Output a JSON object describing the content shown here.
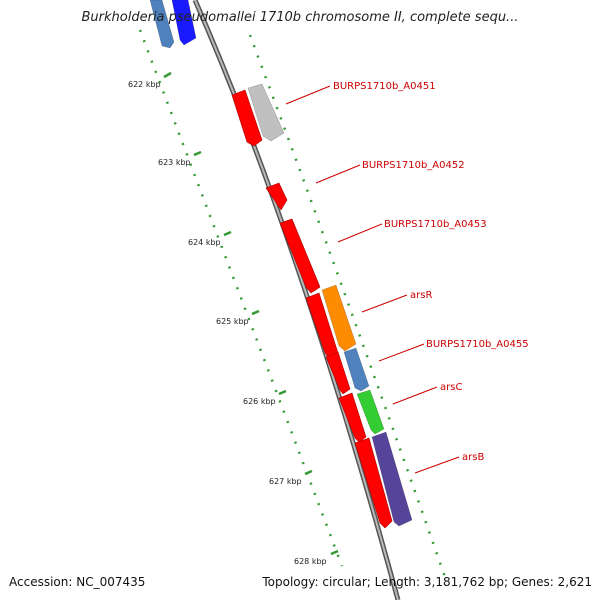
{
  "title": "Burkholderia pseudomallei 1710b chromosome II, complete sequ...",
  "accession_text": "Accession: NC_007435",
  "summary_text": "Topology: circular; Length: 3,181,762 bp; Genes: 2,621",
  "ruler": {
    "unit": "kbp",
    "ticks": [
      622,
      623,
      624,
      625,
      626,
      627,
      628
    ],
    "tick_labels": [
      "622 kbp",
      "623 kbp",
      "624 kbp",
      "625 kbp",
      "626 kbp",
      "627 kbp",
      "628 kbp"
    ]
  },
  "genes": [
    {
      "name": "",
      "strand": "+",
      "color": "#4f81bd"
    },
    {
      "name": "",
      "strand": "-",
      "color": "#1a1aff"
    },
    {
      "name": "BURPS1710b_A0451",
      "strand": "+",
      "color": "#c0c0c0"
    },
    {
      "name": "",
      "strand": "-",
      "color": "#ff0000"
    },
    {
      "name": "BURPS1710b_A0452",
      "strand": "-",
      "color": "#ff0000"
    },
    {
      "name": "BURPS1710b_A0453",
      "strand": "-",
      "color": "#ff0000"
    },
    {
      "name": "arsR",
      "strand": "+",
      "color": "#ff8c00"
    },
    {
      "name": "",
      "strand": "-",
      "color": "#ff0000"
    },
    {
      "name": "BURPS1710b_A0455",
      "strand": "+",
      "color": "#4f81bd"
    },
    {
      "name": "",
      "strand": "-",
      "color": "#ff0000"
    },
    {
      "name": "arsC",
      "strand": "+",
      "color": "#33cc33"
    },
    {
      "name": "",
      "strand": "-",
      "color": "#ff0000"
    },
    {
      "name": "arsB",
      "strand": "+",
      "color": "#554499"
    }
  ],
  "colors": {
    "backbone": "#888888",
    "dotted_track": "#339933",
    "label_line": "#cc0000",
    "cds_red": "#ff0000"
  }
}
